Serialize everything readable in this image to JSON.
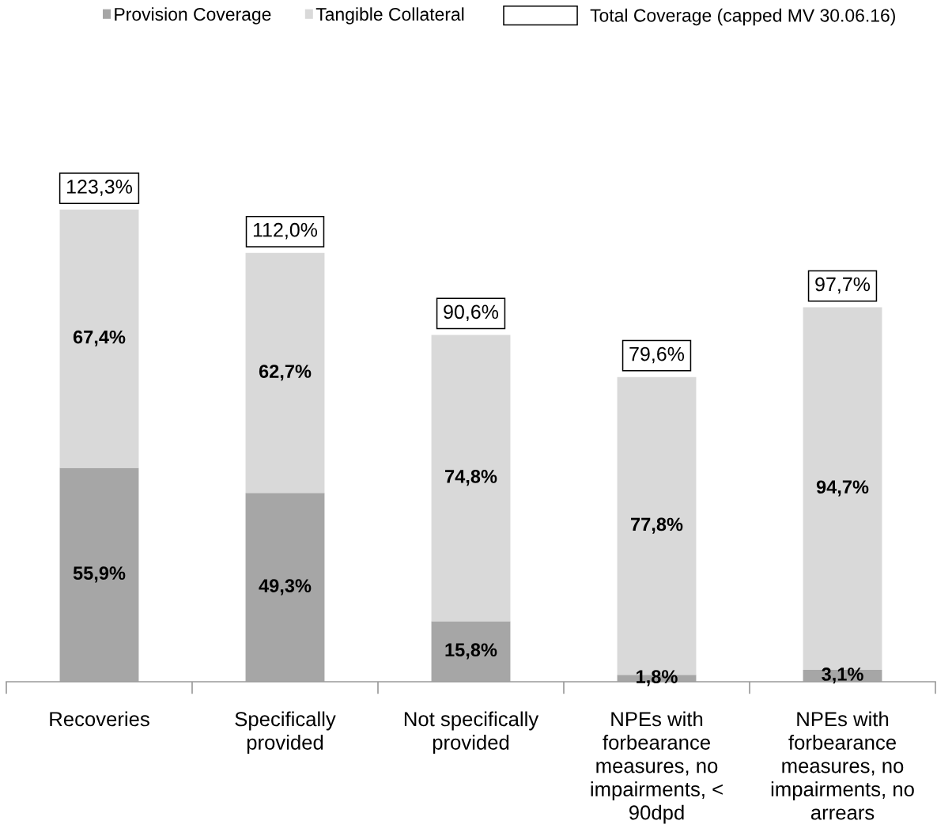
{
  "chart_data": {
    "type": "bar",
    "stacked": true,
    "categories": [
      "Recoveries",
      "Specifically provided",
      "Not specifically provided",
      "NPEs with forbearance measures, no impairments, < 90dpd",
      "NPEs with forbearance measures, no impairments, no arrears"
    ],
    "series": [
      {
        "name": "Provision Coverage",
        "color": "#a6a6a6",
        "values": [
          55.9,
          49.3,
          15.8,
          1.8,
          3.1
        ],
        "value_labels": [
          "55,9%",
          "49,3%",
          "15,8%",
          "1,8%",
          "3,1%"
        ]
      },
      {
        "name": "Tangible Collateral",
        "color": "#d9d9d9",
        "values": [
          67.4,
          62.7,
          74.8,
          77.8,
          94.7
        ],
        "value_labels": [
          "67,4%",
          "62,7%",
          "74,8%",
          "77,8%",
          "94,7%"
        ]
      }
    ],
    "totals": [
      "123,3%",
      "112,0%",
      "90,6%",
      "79,6%",
      "97,7%"
    ],
    "annotations": [
      "Total Coverage (capped MV 30.06.16)"
    ],
    "legend": "top",
    "tick_labels": "x"
  }
}
